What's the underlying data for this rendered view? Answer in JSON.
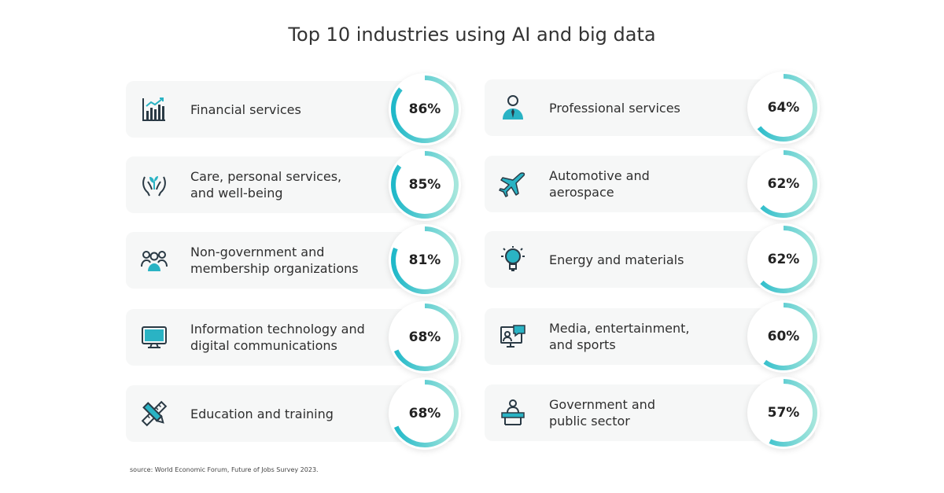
{
  "chart_data": {
    "type": "bar",
    "title": "Top 10 industries using AI and big data",
    "categories": [
      "Financial services",
      "Care, personal services,\nand well-being",
      "Non-government and\nmembership organizations",
      "Information technology and\ndigital communications",
      "Education and training",
      "Professional services",
      "Automotive and\naerospace",
      "Energy and materials",
      "Media, entertainment,\nand sports",
      "Government and\npublic sector"
    ],
    "values": [
      86,
      85,
      81,
      68,
      68,
      64,
      62,
      62,
      60,
      57
    ],
    "value_labels": [
      "86%",
      "85%",
      "81%",
      "68%",
      "68%",
      "64%",
      "62%",
      "62%",
      "60%",
      "57%"
    ],
    "icons": [
      "bar-chart-icon",
      "hands-plant-icon",
      "people-group-icon",
      "monitor-icon",
      "pencil-ruler-icon",
      "businessman-icon",
      "airplane-icon",
      "lightbulb-icon",
      "media-screen-icon",
      "podium-speaker-icon"
    ],
    "ylim": [
      0,
      100
    ],
    "source": "source:  World Economic Forum, Future of Jobs Survey 2023."
  },
  "colors": {
    "ring_start": "#1fb8c9",
    "ring_end": "#a6e6dc",
    "icon": "#2a3a45",
    "icon_accent": "#2ab3c4",
    "card": "#f6f7f7"
  }
}
